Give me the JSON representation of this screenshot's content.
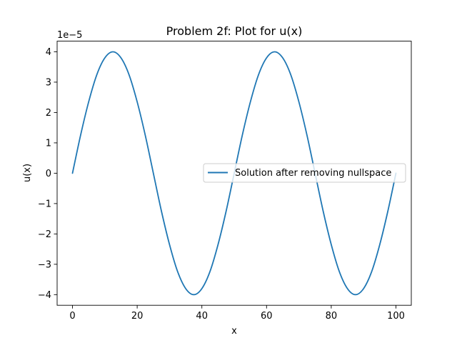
{
  "chart_data": {
    "type": "line",
    "title": "Problem 2f: Plot for u(x)",
    "xlabel": "x",
    "ylabel": "u(x)",
    "y_offset_label": "1e−5",
    "xlim": [
      -4.75,
      104.75
    ],
    "ylim": [
      -4.35,
      4.35
    ],
    "x_ticks": [
      0,
      20,
      40,
      60,
      80,
      100
    ],
    "x_tick_labels": [
      "0",
      "20",
      "40",
      "60",
      "80",
      "100"
    ],
    "y_ticks": [
      -4,
      -3,
      -2,
      -1,
      0,
      1,
      2,
      3,
      4
    ],
    "y_tick_labels": [
      "−4",
      "−3",
      "−2",
      "−1",
      "0",
      "1",
      "2",
      "3",
      "4"
    ],
    "grid": false,
    "legend_placement": "center-right",
    "series": [
      {
        "name": "Solution after removing nullspace",
        "color": "#1f77b4",
        "x": [
          0,
          2.5,
          5,
          7.5,
          10,
          12.5,
          15,
          17.5,
          20,
          22.5,
          25,
          27.5,
          30,
          32.5,
          35,
          37.5,
          40,
          42.5,
          45,
          47.5,
          50,
          52.5,
          55,
          57.5,
          60,
          62.5,
          65,
          67.5,
          70,
          72.5,
          75,
          77.5,
          80,
          82.5,
          85,
          87.5,
          90,
          92.5,
          95,
          97.5,
          100
        ],
        "y": [
          0,
          1.25,
          2.35,
          3.24,
          3.8,
          4.0,
          3.8,
          3.24,
          2.35,
          1.25,
          0,
          -1.25,
          -2.35,
          -3.24,
          -3.8,
          -4.0,
          -3.8,
          -3.24,
          -2.35,
          -1.25,
          0,
          1.25,
          2.35,
          3.24,
          3.8,
          4.0,
          3.8,
          3.24,
          2.35,
          1.25,
          0,
          -1.25,
          -2.35,
          -3.24,
          -3.8,
          -4.0,
          -3.8,
          -3.24,
          -2.35,
          -1.25,
          0
        ]
      }
    ]
  }
}
